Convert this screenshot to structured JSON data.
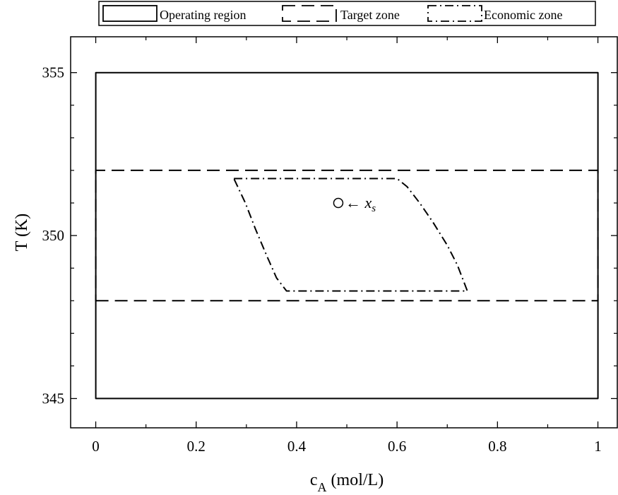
{
  "chart_data": {
    "type": "line",
    "title": "",
    "xlabel": "c",
    "xlabel_sub": "A",
    "xlabel_unit": " (mol/L)",
    "ylabel": "T (K)",
    "xlim": [
      -0.05,
      1.04
    ],
    "ylim": [
      344.1,
      356.1
    ],
    "grid": false,
    "legend_position": "top",
    "x_ticks": [
      {
        "value": 0,
        "label": "0"
      },
      {
        "value": 0.2,
        "label": "0.2"
      },
      {
        "value": 0.4,
        "label": "0.4"
      },
      {
        "value": 0.6,
        "label": "0.6"
      },
      {
        "value": 0.8,
        "label": "0.8"
      },
      {
        "value": 1,
        "label": "1"
      }
    ],
    "x_minor_ticks": [
      0.1,
      0.3,
      0.5,
      0.7,
      0.9
    ],
    "y_ticks": [
      {
        "value": 345,
        "label": "345"
      },
      {
        "value": 350,
        "label": "350"
      },
      {
        "value": 355,
        "label": "355"
      }
    ],
    "y_minor_ticks": [
      346,
      347,
      348,
      349,
      351,
      352,
      353,
      354
    ],
    "series": [
      {
        "name": "Operating region",
        "style": "solid",
        "closed": true,
        "points": [
          [
            0,
            345
          ],
          [
            1,
            345
          ],
          [
            1,
            355
          ],
          [
            0,
            355
          ]
        ]
      },
      {
        "name": "Target zone",
        "style": "dashed",
        "closed": true,
        "points": [
          [
            0,
            348
          ],
          [
            1,
            348
          ],
          [
            1,
            352
          ],
          [
            0,
            352
          ]
        ]
      },
      {
        "name": "Economic zone",
        "style": "dashdot",
        "closed": true,
        "points": [
          [
            0.275,
            351.75
          ],
          [
            0.6,
            351.75
          ],
          [
            0.62,
            351.5
          ],
          [
            0.645,
            351.0
          ],
          [
            0.672,
            350.4
          ],
          [
            0.7,
            349.7
          ],
          [
            0.72,
            349.1
          ],
          [
            0.74,
            348.3
          ],
          [
            0.38,
            348.3
          ],
          [
            0.36,
            348.7
          ],
          [
            0.34,
            349.4
          ],
          [
            0.318,
            350.2
          ],
          [
            0.298,
            351.0
          ],
          [
            0.275,
            351.75
          ]
        ]
      }
    ],
    "annotations": [
      {
        "text": "← x",
        "sub": "s",
        "marker": "open-circle",
        "x": 0.483,
        "y": 351.0
      }
    ]
  }
}
